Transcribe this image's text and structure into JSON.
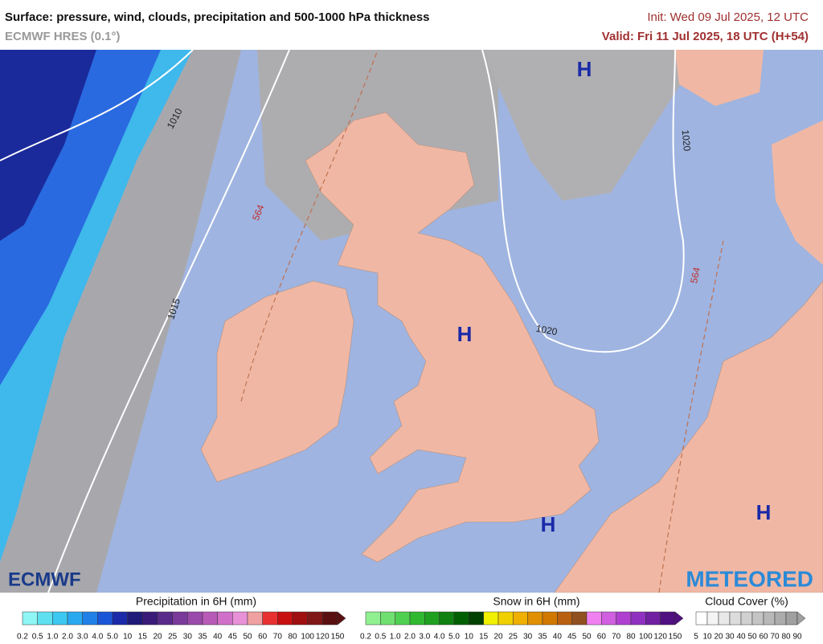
{
  "header": {
    "title": "Surface: pressure, wind, clouds, precipitation and 500-1000 hPa thickness",
    "model": "ECMWF HRES (0.1°)",
    "init": "Init: Wed 09 Jul 2025, 12 UTC",
    "valid": "Valid: Fri 11 Jul 2025, 18 UTC (H+54)"
  },
  "map": {
    "pressure_centers": [
      "H",
      "H",
      "H",
      "H"
    ],
    "isobar_labels": [
      "1010",
      "1015",
      "1020",
      "1020"
    ],
    "thickness_labels": [
      "564",
      "564"
    ]
  },
  "logos": {
    "left": "ECMWF",
    "right": "METEORED"
  },
  "legends": [
    {
      "title": "Precipitation in 6H (mm)",
      "labels": [
        "0.2",
        "0.5",
        "1.0",
        "2.0",
        "3.0",
        "4.0",
        "5.0",
        "10",
        "15",
        "20",
        "25",
        "30",
        "35",
        "40",
        "45",
        "50",
        "60",
        "70",
        "80",
        "100",
        "120",
        "150"
      ],
      "colors": [
        "#8ff5f5",
        "#5fe0f0",
        "#3cc8f0",
        "#2aa8f0",
        "#2080e8",
        "#1a55d8",
        "#1a2aa8",
        "#201a78",
        "#3a1a78",
        "#5a2a8a",
        "#7a3a9a",
        "#9a4aaa",
        "#b85ab8",
        "#d070c8",
        "#e890d8",
        "#f0a0a0",
        "#e83030",
        "#c81010",
        "#a01010",
        "#801818",
        "#5a1010"
      ]
    },
    {
      "title": "Snow in 6H (mm)",
      "labels": [
        "0.2",
        "0.5",
        "1.0",
        "2.0",
        "3.0",
        "4.0",
        "5.0",
        "10",
        "15",
        "20",
        "25",
        "30",
        "35",
        "40",
        "45",
        "50",
        "60",
        "70",
        "80",
        "100",
        "120",
        "150"
      ],
      "colors": [
        "#90f090",
        "#70e070",
        "#50d050",
        "#30b830",
        "#20a020",
        "#108010",
        "#006000",
        "#004000",
        "#f0f000",
        "#f0d000",
        "#f0b000",
        "#e09000",
        "#d07800",
        "#b86010",
        "#905020",
        "#f080f0",
        "#d060e0",
        "#b040d0",
        "#9030c0",
        "#7020a0",
        "#501080"
      ]
    },
    {
      "title": "Cloud Cover (%)",
      "labels": [
        "5",
        "10",
        "20",
        "30",
        "40",
        "50",
        "60",
        "70",
        "80",
        "90"
      ],
      "colors": [
        "#ffffff",
        "#f4f4f4",
        "#e8e8e8",
        "#dcdcdc",
        "#d0d0d0",
        "#c4c4c4",
        "#b8b8b8",
        "#acacac",
        "#a0a0a0"
      ]
    }
  ]
}
